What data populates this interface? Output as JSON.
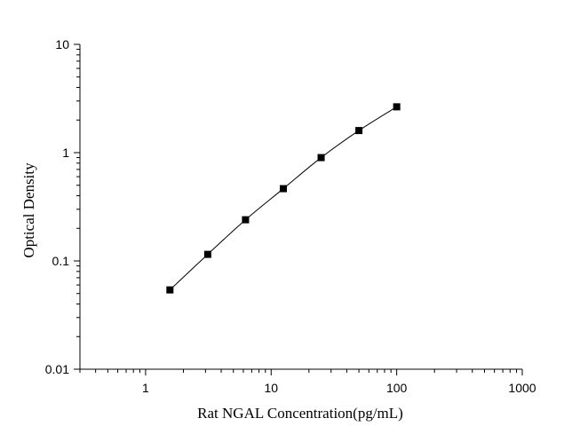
{
  "chart_data": {
    "type": "scatter",
    "title": "",
    "xlabel": "Rat NGAL Concentration(pg/mL)",
    "ylabel": "Optical Density",
    "x_scale": "log",
    "y_scale": "log",
    "xlim": [
      0.3,
      1000
    ],
    "ylim": [
      0.01,
      10
    ],
    "x_ticks": [
      "1",
      "10",
      "100",
      "1000"
    ],
    "y_ticks": [
      "0.01",
      "0.1",
      "1",
      "10"
    ],
    "grid": false,
    "legend": "none",
    "series": [
      {
        "marker": "square",
        "fit_line": true,
        "color": "#000000",
        "x": [
          1.5625,
          3.125,
          6.25,
          12.5,
          25,
          50,
          100
        ],
        "y": [
          0.054,
          0.115,
          0.24,
          0.465,
          0.9,
          1.6,
          2.65
        ]
      }
    ]
  }
}
